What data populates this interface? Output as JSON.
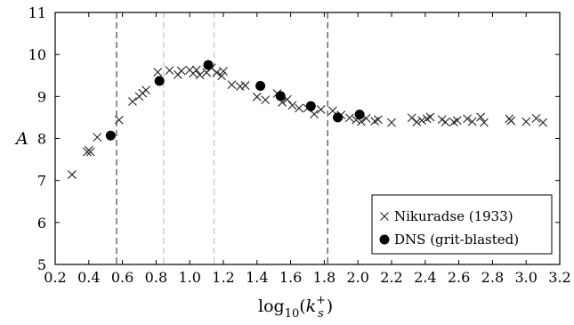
{
  "chart_data": {
    "type": "scatter",
    "xlabel_main": "log",
    "xlabel_sub": "10",
    "xlabel_arg_open": "(",
    "xlabel_var": "k",
    "xlabel_var_sup": "+",
    "xlabel_var_sub": "s",
    "xlabel_arg_close": ")",
    "ylabel": "A",
    "xlim": [
      0.2,
      3.2
    ],
    "ylim": [
      5,
      11
    ],
    "xticks": [
      "0.2",
      "0.4",
      "0.6",
      "0.8",
      "1.0",
      "1.2",
      "1.4",
      "1.6",
      "1.8",
      "2.0",
      "2.2",
      "2.4",
      "2.6",
      "2.8",
      "3.0",
      "3.2"
    ],
    "yticks": [
      "5",
      "6",
      "7",
      "8",
      "9",
      "10",
      "11"
    ],
    "grid": false,
    "legend_position": "bottom-right",
    "vlines": [
      {
        "x": 0.565,
        "style": "dark-dashed"
      },
      {
        "x": 0.845,
        "style": "light-dashed"
      },
      {
        "x": 1.145,
        "style": "light-dashed"
      },
      {
        "x": 1.82,
        "style": "dark-dashed"
      }
    ],
    "series": [
      {
        "name": "Nikuradse (1933)",
        "marker": "x",
        "points": [
          [
            0.3,
            7.14
          ],
          [
            0.39,
            7.68
          ],
          [
            0.4,
            7.72
          ],
          [
            0.41,
            7.68
          ],
          [
            0.45,
            8.03
          ],
          [
            0.58,
            8.44
          ],
          [
            0.66,
            8.88
          ],
          [
            0.7,
            9.0
          ],
          [
            0.72,
            9.08
          ],
          [
            0.74,
            9.15
          ],
          [
            0.81,
            9.58
          ],
          [
            0.88,
            9.62
          ],
          [
            0.93,
            9.52
          ],
          [
            0.95,
            9.61
          ],
          [
            1.0,
            9.63
          ],
          [
            1.02,
            9.55
          ],
          [
            1.04,
            9.63
          ],
          [
            1.06,
            9.51
          ],
          [
            1.1,
            9.57
          ],
          [
            1.13,
            9.68
          ],
          [
            1.16,
            9.57
          ],
          [
            1.19,
            9.49
          ],
          [
            1.2,
            9.6
          ],
          [
            1.25,
            9.28
          ],
          [
            1.3,
            9.24
          ],
          [
            1.33,
            9.26
          ],
          [
            1.4,
            8.99
          ],
          [
            1.45,
            8.92
          ],
          [
            1.52,
            9.07
          ],
          [
            1.55,
            8.86
          ],
          [
            1.58,
            8.93
          ],
          [
            1.61,
            8.79
          ],
          [
            1.65,
            8.72
          ],
          [
            1.7,
            8.72
          ],
          [
            1.74,
            8.58
          ],
          [
            1.78,
            8.69
          ],
          [
            1.85,
            8.66
          ],
          [
            1.9,
            8.56
          ],
          [
            1.95,
            8.49
          ],
          [
            1.99,
            8.44
          ],
          [
            2.02,
            8.4
          ],
          [
            2.05,
            8.48
          ],
          [
            2.1,
            8.41
          ],
          [
            2.12,
            8.45
          ],
          [
            2.2,
            8.38
          ],
          [
            2.32,
            8.49
          ],
          [
            2.35,
            8.39
          ],
          [
            2.38,
            8.43
          ],
          [
            2.41,
            8.47
          ],
          [
            2.43,
            8.51
          ],
          [
            2.5,
            8.45
          ],
          [
            2.52,
            8.39
          ],
          [
            2.57,
            8.39
          ],
          [
            2.59,
            8.43
          ],
          [
            2.65,
            8.47
          ],
          [
            2.68,
            8.4
          ],
          [
            2.73,
            8.51
          ],
          [
            2.75,
            8.38
          ],
          [
            2.9,
            8.47
          ],
          [
            2.91,
            8.42
          ],
          [
            3.0,
            8.4
          ],
          [
            3.06,
            8.48
          ],
          [
            3.1,
            8.38
          ]
        ]
      },
      {
        "name": "DNS (grit-blasted)",
        "marker": "filled-circle",
        "points": [
          [
            0.53,
            8.07
          ],
          [
            0.82,
            9.37
          ],
          [
            1.11,
            9.75
          ],
          [
            1.42,
            9.25
          ],
          [
            1.54,
            9.01
          ],
          [
            1.72,
            8.77
          ],
          [
            1.88,
            8.5
          ],
          [
            2.01,
            8.57
          ]
        ]
      }
    ]
  }
}
